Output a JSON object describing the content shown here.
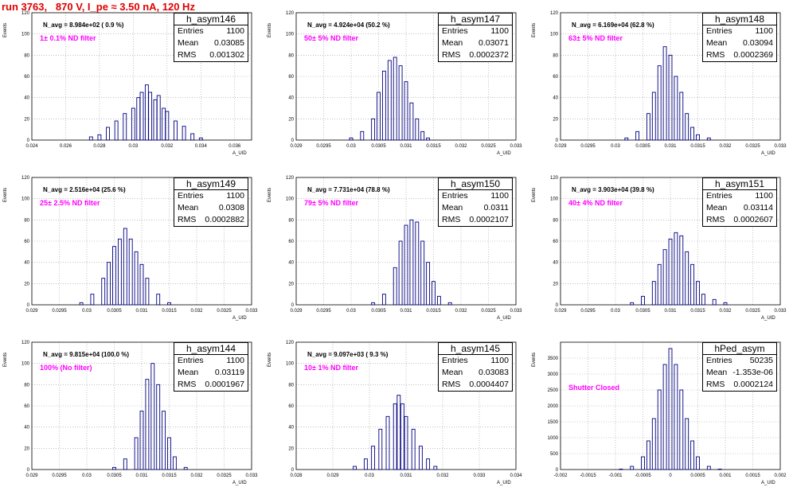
{
  "title": "run 3763,   870 V, I_pe ≈ 3.50 nA, 120 Hz",
  "ylabel": "Events",
  "xlabel": "A_UID",
  "stat_labels": {
    "entries": "Entries",
    "mean": "Mean",
    "rms": "RMS"
  },
  "chart_data": [
    {
      "type": "bar",
      "name": "h_asym146",
      "navg": "N_avg = 8.984e+02 ( 0.9 %)",
      "filter": "1± 0.1% ND filter",
      "entries": "1100",
      "mean": "0.03085",
      "rms": "0.001302",
      "xlim": [
        0.024,
        0.037
      ],
      "ylim": [
        0,
        120
      ],
      "xticks": [
        "0.024",
        "0.026",
        "0.028",
        "0.03",
        "0.032",
        "0.034",
        "0.036"
      ],
      "yticks": [
        "0",
        "20",
        "40",
        "60",
        "80",
        "100",
        "120"
      ],
      "x": [
        0.0275,
        0.028,
        0.0285,
        0.029,
        0.0295,
        0.03,
        0.0303,
        0.0305,
        0.0308,
        0.031,
        0.0313,
        0.0315,
        0.0318,
        0.032,
        0.0325,
        0.033,
        0.0335,
        0.034
      ],
      "y": [
        3,
        5,
        12,
        18,
        25,
        30,
        40,
        45,
        52,
        45,
        38,
        42,
        30,
        27,
        18,
        13,
        6,
        2
      ]
    },
    {
      "type": "bar",
      "name": "h_asym147",
      "navg": "N_avg = 4.924e+04 (50.2 %)",
      "filter": "50± 5% ND filter",
      "entries": "1100",
      "mean": "0.03071",
      "rms": "0.0002372",
      "xlim": [
        0.029,
        0.033
      ],
      "ylim": [
        0,
        120
      ],
      "xticks": [
        "0.029",
        "0.0295",
        "0.03",
        "0.0305",
        "0.031",
        "0.0315",
        "0.032",
        "0.0325",
        "0.033"
      ],
      "yticks": [
        "0",
        "20",
        "40",
        "60",
        "80",
        "100",
        "120"
      ],
      "x": [
        0.03,
        0.0302,
        0.0304,
        0.0305,
        0.0306,
        0.0307,
        0.0308,
        0.0309,
        0.031,
        0.0311,
        0.0312,
        0.0313,
        0.0314
      ],
      "y": [
        2,
        8,
        20,
        45,
        65,
        75,
        78,
        70,
        55,
        35,
        20,
        8,
        2
      ]
    },
    {
      "type": "bar",
      "name": "h_asym148",
      "navg": "N_avg = 6.169e+04 (62.8 %)",
      "filter": "63± 5% ND filter",
      "entries": "1100",
      "mean": "0.03094",
      "rms": "0.0002369",
      "xlim": [
        0.029,
        0.033
      ],
      "ylim": [
        0,
        120
      ],
      "xticks": [
        "0.029",
        "0.0295",
        "0.03",
        "0.0305",
        "0.031",
        "0.0315",
        "0.032",
        "0.0325",
        "0.033"
      ],
      "yticks": [
        "0",
        "20",
        "40",
        "60",
        "80",
        "100",
        "120"
      ],
      "x": [
        0.0302,
        0.0304,
        0.0306,
        0.0307,
        0.0308,
        0.0309,
        0.031,
        0.0311,
        0.0312,
        0.0313,
        0.0314,
        0.0315,
        0.0317
      ],
      "y": [
        2,
        8,
        25,
        45,
        70,
        88,
        80,
        60,
        45,
        25,
        12,
        5,
        2
      ]
    },
    {
      "type": "bar",
      "name": "h_asym149",
      "navg": "N_avg = 2.516e+04 (25.6 %)",
      "filter": "25± 2.5% ND filter",
      "entries": "1100",
      "mean": "0.0308",
      "rms": "0.0002882",
      "xlim": [
        0.029,
        0.033
      ],
      "ylim": [
        0,
        120
      ],
      "xticks": [
        "0.029",
        "0.0295",
        "0.03",
        "0.0305",
        "0.031",
        "0.0315",
        "0.032",
        "0.0325",
        "0.033"
      ],
      "yticks": [
        "0",
        "20",
        "40",
        "60",
        "80",
        "100",
        "120"
      ],
      "x": [
        0.0299,
        0.0301,
        0.0303,
        0.0304,
        0.0305,
        0.0306,
        0.0307,
        0.0308,
        0.0309,
        0.031,
        0.0311,
        0.0313,
        0.0315
      ],
      "y": [
        2,
        10,
        25,
        40,
        55,
        62,
        72,
        62,
        50,
        38,
        25,
        10,
        2
      ]
    },
    {
      "type": "bar",
      "name": "h_asym150",
      "navg": "N_avg = 7.731e+04 (78.8 %)",
      "filter": "79± 5% ND filter",
      "entries": "1100",
      "mean": "0.0311",
      "rms": "0.0002107",
      "xlim": [
        0.029,
        0.033
      ],
      "ylim": [
        0,
        120
      ],
      "xticks": [
        "0.029",
        "0.0295",
        "0.03",
        "0.0305",
        "0.031",
        "0.0315",
        "0.032",
        "0.0325",
        "0.033"
      ],
      "yticks": [
        "0",
        "20",
        "40",
        "60",
        "80",
        "100",
        "120"
      ],
      "x": [
        0.0304,
        0.0306,
        0.0308,
        0.0309,
        0.031,
        0.0311,
        0.0312,
        0.0313,
        0.0314,
        0.0315,
        0.0316,
        0.0318
      ],
      "y": [
        2,
        10,
        35,
        60,
        75,
        80,
        78,
        60,
        40,
        22,
        8,
        2
      ]
    },
    {
      "type": "bar",
      "name": "h_asym151",
      "navg": "N_avg = 3.903e+04 (39.8 %)",
      "filter": "40± 4% ND filter",
      "entries": "1100",
      "mean": "0.03114",
      "rms": "0.0002607",
      "xlim": [
        0.029,
        0.033
      ],
      "ylim": [
        0,
        120
      ],
      "xticks": [
        "0.029",
        "0.0295",
        "0.03",
        "0.0305",
        "0.031",
        "0.0315",
        "0.032",
        "0.0325",
        "0.033"
      ],
      "yticks": [
        "0",
        "20",
        "40",
        "60",
        "80",
        "100",
        "120"
      ],
      "x": [
        0.0303,
        0.0305,
        0.0307,
        0.0308,
        0.0309,
        0.031,
        0.0311,
        0.0312,
        0.0313,
        0.0314,
        0.0315,
        0.0316,
        0.0318,
        0.032
      ],
      "y": [
        2,
        8,
        22,
        38,
        52,
        62,
        68,
        65,
        50,
        38,
        22,
        10,
        5,
        2
      ]
    },
    {
      "type": "bar",
      "name": "h_asym144",
      "navg": "N_avg = 9.815e+04 (100.0 %)",
      "filter": "100% (No filter)",
      "entries": "1100",
      "mean": "0.03119",
      "rms": "0.0001967",
      "xlim": [
        0.029,
        0.033
      ],
      "ylim": [
        0,
        120
      ],
      "xticks": [
        "0.029",
        "0.0295",
        "0.03",
        "0.0305",
        "0.031",
        "0.0315",
        "0.032",
        "0.0325",
        "0.033"
      ],
      "yticks": [
        "0",
        "20",
        "40",
        "60",
        "80",
        "100",
        "120"
      ],
      "x": [
        0.0305,
        0.0307,
        0.0309,
        0.031,
        0.0311,
        0.0312,
        0.0313,
        0.0314,
        0.0315,
        0.0316,
        0.0318
      ],
      "y": [
        2,
        10,
        30,
        55,
        85,
        100,
        80,
        55,
        30,
        12,
        2
      ]
    },
    {
      "type": "bar",
      "name": "h_asym145",
      "navg": "N_avg = 9.097e+03 ( 9.3 %)",
      "filter": "10± 1% ND filter",
      "entries": "1100",
      "mean": "0.03083",
      "rms": "0.0004407",
      "xlim": [
        0.028,
        0.034
      ],
      "ylim": [
        0,
        120
      ],
      "xticks": [
        "0.028",
        "0.029",
        "0.03",
        "0.031",
        "0.032",
        "0.033",
        "0.034"
      ],
      "yticks": [
        "0",
        "20",
        "40",
        "60",
        "80",
        "100",
        "120"
      ],
      "x": [
        0.0296,
        0.0299,
        0.0301,
        0.0303,
        0.0305,
        0.0307,
        0.0308,
        0.0309,
        0.031,
        0.0312,
        0.0314,
        0.0316,
        0.0318
      ],
      "y": [
        3,
        10,
        22,
        38,
        50,
        62,
        70,
        62,
        50,
        38,
        22,
        10,
        3
      ]
    },
    {
      "type": "bar",
      "name": "hPed_asym",
      "navg": "",
      "filter": "Shutter Closed",
      "entries": "50235",
      "mean": "-1.353e-06",
      "rms": "0.0002124",
      "xlim": [
        -0.002,
        0.002
      ],
      "ylim": [
        0,
        4000
      ],
      "xticks": [
        "-0.002",
        "-0.0015",
        "-0.001",
        "-0.0005",
        "0",
        "0.0005",
        "0.001",
        "0.0015",
        "0.002"
      ],
      "yticks": [
        "0",
        "500",
        "1000",
        "1500",
        "2000",
        "2500",
        "3000",
        "3500"
      ],
      "x": [
        -0.0009,
        -0.0007,
        -0.0005,
        -0.0004,
        -0.0003,
        -0.0002,
        -0.0001,
        0,
        0.0001,
        0.0002,
        0.0003,
        0.0004,
        0.0005,
        0.0007,
        0.0009
      ],
      "y": [
        15,
        100,
        400,
        900,
        1600,
        2500,
        3300,
        3800,
        3300,
        2500,
        1600,
        900,
        400,
        100,
        15
      ]
    }
  ]
}
